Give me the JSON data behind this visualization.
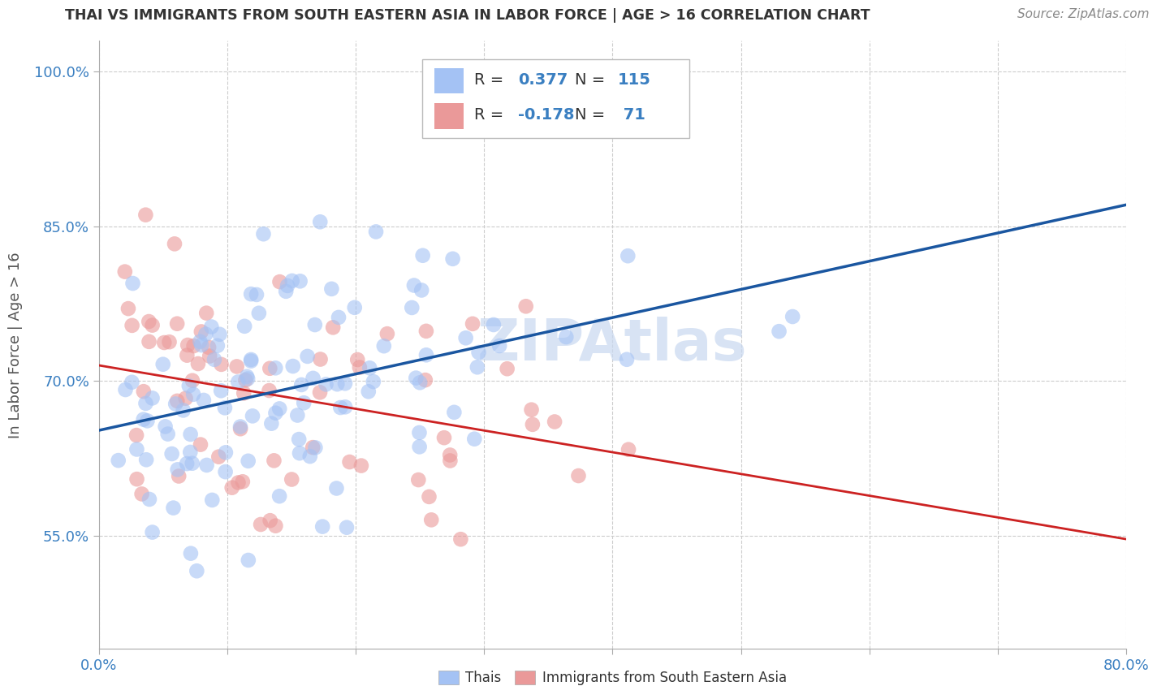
{
  "title": "THAI VS IMMIGRANTS FROM SOUTH EASTERN ASIA IN LABOR FORCE | AGE > 16 CORRELATION CHART",
  "source": "Source: ZipAtlas.com",
  "ylabel": "In Labor Force | Age > 16",
  "xlim": [
    0.0,
    0.8
  ],
  "ylim": [
    0.44,
    1.03
  ],
  "x_ticks": [
    0.0,
    0.1,
    0.2,
    0.3,
    0.4,
    0.5,
    0.6,
    0.7,
    0.8
  ],
  "y_ticks": [
    0.55,
    0.7,
    0.85,
    1.0
  ],
  "y_tick_labels": [
    "55.0%",
    "70.0%",
    "85.0%",
    "100.0%"
  ],
  "blue_color": "#a4c2f4",
  "pink_color": "#ea9999",
  "blue_line_color": "#1a56a0",
  "pink_line_color": "#cc2222",
  "watermark_color": "#c8d8f0",
  "blue_r": 0.377,
  "blue_n": 115,
  "pink_r": -0.178,
  "pink_n": 71,
  "blue_seed": 42,
  "pink_seed": 99,
  "grid_color": "#cccccc",
  "background_color": "#ffffff",
  "title_color": "#333333",
  "axis_label_color": "#555555",
  "tick_label_color": "#3a7fc1",
  "source_color": "#888888"
}
